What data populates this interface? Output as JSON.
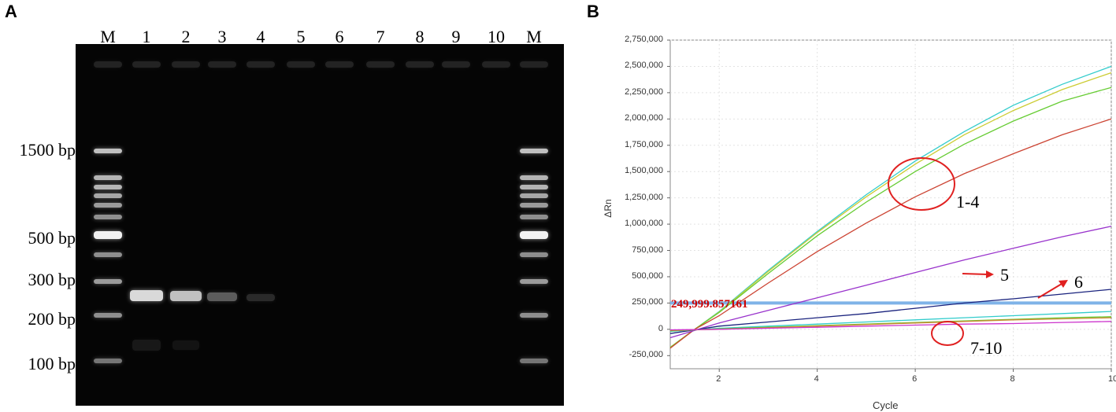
{
  "panel_a": {
    "letter": "A",
    "lane_labels": [
      "M",
      "1",
      "2",
      "3",
      "4",
      "5",
      "6",
      "7",
      "8",
      "9",
      "10",
      "M"
    ],
    "size_markers": [
      "1500 bp",
      "500 bp",
      "300 bp",
      "200 bp",
      "100 bp"
    ]
  },
  "panel_b": {
    "letter": "B",
    "ylabel": "ΔRn",
    "xlabel": "Cycle",
    "y_ticks": [
      "2,750,000",
      "2,500,000",
      "2,250,000",
      "2,000,000",
      "1,750,000",
      "1,500,000",
      "1,250,000",
      "1,000,000",
      "750,000",
      "500,000",
      "250,000",
      "0",
      "-250,000"
    ],
    "x_ticks": [
      "2",
      "4",
      "6",
      "8",
      "10"
    ],
    "threshold_label": "249,999.857161",
    "annotations": {
      "group_1_4": "1-4",
      "curve_5": "5",
      "curve_6": "6",
      "group_7_10": "7-10"
    }
  },
  "chart_data": {
    "type": "line",
    "xlabel": "Cycle",
    "ylabel": "ΔRn",
    "xlim": [
      1,
      10
    ],
    "ylim": [
      -375000,
      2750000
    ],
    "grid": true,
    "threshold": 249999.857161,
    "series": [
      {
        "color": "#33cccc",
        "x": [
          1,
          1.5,
          2,
          3,
          4,
          5,
          6,
          7,
          8,
          9,
          10
        ],
        "y": [
          -170000,
          0,
          170000,
          560000,
          930000,
          1280000,
          1600000,
          1880000,
          2130000,
          2330000,
          2500000
        ]
      },
      {
        "color": "#cccc33",
        "x": [
          1,
          1.5,
          2,
          3,
          4,
          5,
          6,
          7,
          8,
          9,
          10
        ],
        "y": [
          -170000,
          0,
          165000,
          550000,
          920000,
          1260000,
          1570000,
          1850000,
          2080000,
          2280000,
          2440000
        ]
      },
      {
        "color": "#66cc33",
        "x": [
          1,
          1.5,
          2,
          3,
          4,
          5,
          6,
          7,
          8,
          9,
          10
        ],
        "y": [
          -175000,
          0,
          160000,
          530000,
          890000,
          1210000,
          1500000,
          1760000,
          1980000,
          2170000,
          2300000
        ]
      },
      {
        "color": "#cc4433",
        "x": [
          1,
          1.5,
          2,
          3,
          4,
          5,
          6,
          7,
          8,
          9,
          10
        ],
        "y": [
          -180000,
          0,
          130000,
          440000,
          740000,
          1010000,
          1260000,
          1480000,
          1670000,
          1850000,
          2000000
        ]
      },
      {
        "color": "#9933cc",
        "x": [
          1,
          1.5,
          2,
          3,
          4,
          5,
          6,
          7,
          8,
          9,
          10
        ],
        "y": [
          -80000,
          -10000,
          60000,
          180000,
          300000,
          420000,
          540000,
          660000,
          770000,
          880000,
          980000
        ]
      },
      {
        "color": "#1a237e",
        "x": [
          1,
          1.5,
          2,
          3,
          4,
          5,
          6,
          7,
          8,
          9,
          10
        ],
        "y": [
          -40000,
          -5000,
          30000,
          70000,
          110000,
          150000,
          200000,
          250000,
          290000,
          335000,
          380000
        ]
      },
      {
        "color": "#33cccc",
        "x": [
          1,
          1.5,
          2,
          3,
          4,
          5,
          6,
          7,
          8,
          9,
          10
        ],
        "y": [
          -20000,
          -5000,
          10000,
          30000,
          50000,
          70000,
          90000,
          110000,
          130000,
          150000,
          170000
        ]
      },
      {
        "color": "#66cc33",
        "x": [
          1,
          1.5,
          2,
          3,
          4,
          5,
          6,
          7,
          8,
          9,
          10
        ],
        "y": [
          -15000,
          -5000,
          5000,
          20000,
          35000,
          50000,
          65000,
          80000,
          95000,
          110000,
          120000
        ]
      },
      {
        "color": "#cc8833",
        "x": [
          1,
          1.5,
          2,
          3,
          4,
          5,
          6,
          7,
          8,
          9,
          10
        ],
        "y": [
          -10000,
          -5000,
          0,
          15000,
          30000,
          45000,
          60000,
          75000,
          90000,
          100000,
          110000
        ]
      },
      {
        "color": "#cc33cc",
        "x": [
          1,
          1.5,
          2,
          3,
          4,
          5,
          6,
          7,
          8,
          9,
          10
        ],
        "y": [
          -5000,
          -3000,
          0,
          10000,
          20000,
          30000,
          40000,
          50000,
          55000,
          65000,
          75000
        ]
      }
    ]
  }
}
